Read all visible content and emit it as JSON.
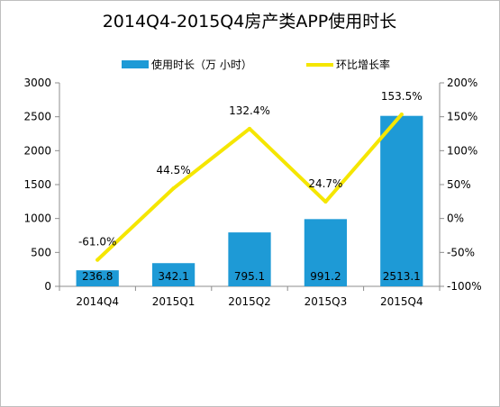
{
  "chart_data": {
    "type": "bar",
    "title": "2014Q4-2015Q4房产类APP使用时长",
    "categories": [
      "2014Q4",
      "2015Q1",
      "2015Q2",
      "2015Q3",
      "2015Q4"
    ],
    "series": [
      {
        "name": "使用时长（万 小时）",
        "type": "bar",
        "axis": "left",
        "color": "#1e9ad6",
        "values": [
          236.8,
          342.1,
          795.1,
          991.2,
          2513.1
        ],
        "labels": [
          "236.8",
          "342.1",
          "795.1",
          "991.2",
          "2513.1"
        ]
      },
      {
        "name": "环比增长率",
        "type": "line",
        "axis": "right",
        "color": "#f5e600",
        "values": [
          -61.0,
          44.5,
          132.4,
          24.7,
          153.5
        ],
        "labels": [
          "-61.0%",
          "44.5%",
          "132.4%",
          "24.7%",
          "153.5%"
        ]
      }
    ],
    "y_left": {
      "range": [
        0,
        3000
      ],
      "ticks": [
        0,
        500,
        1000,
        1500,
        2000,
        2500,
        3000
      ],
      "tick_labels": [
        "0",
        "500",
        "1000",
        "1500",
        "2000",
        "2500",
        "3000"
      ]
    },
    "y_right": {
      "range": [
        -100,
        200
      ],
      "ticks": [
        -100,
        -50,
        0,
        50,
        100,
        150,
        200
      ],
      "tick_labels": [
        "-100%",
        "-50%",
        "0%",
        "50%",
        "100%",
        "150%",
        "200%"
      ]
    },
    "grid": false,
    "legend": "top"
  }
}
